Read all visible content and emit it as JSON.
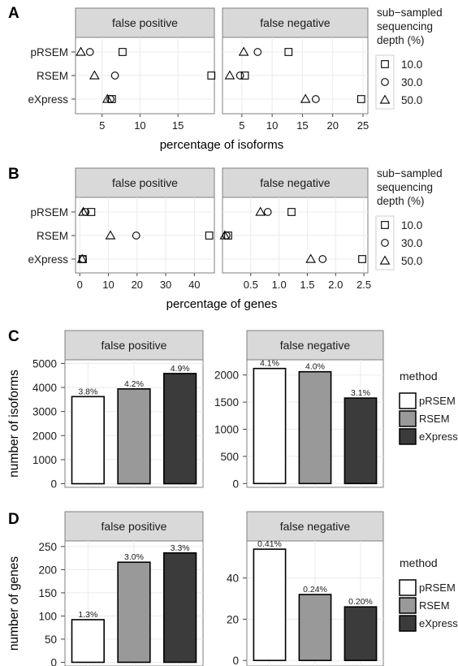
{
  "chart_data": [
    {
      "panel_label": "A",
      "type": "scatter",
      "facets": [
        {
          "title": "false positive",
          "xlim": [
            1.5,
            19.8
          ],
          "ticks": [
            "5",
            "10",
            "15"
          ],
          "tick_values": [
            5,
            10,
            15
          ],
          "series": [
            {
              "name": "10.0",
              "values": [
                7.7,
                19.4,
                6.3
              ]
            },
            {
              "name": "30.0",
              "values": [
                3.4,
                6.7,
                6.1
              ]
            },
            {
              "name": "50.0",
              "values": [
                2.2,
                4.0,
                5.7
              ]
            }
          ]
        },
        {
          "title": "false negative",
          "xlim": [
            1.8,
            25.8
          ],
          "ticks": [
            "5",
            "10",
            "15",
            "20",
            "25"
          ],
          "tick_values": [
            5,
            10,
            15,
            20,
            25
          ],
          "series": [
            {
              "name": "10.0",
              "values": [
                12.7,
                5.5,
                24.7
              ]
            },
            {
              "name": "30.0",
              "values": [
                7.6,
                4.7,
                17.2
              ]
            },
            {
              "name": "50.0",
              "values": [
                5.3,
                3.0,
                15.5
              ]
            }
          ]
        }
      ],
      "categories": [
        "pRSEM",
        "RSEM",
        "eXpress"
      ],
      "xlabel": "percentage of isoforms",
      "legend": {
        "title": [
          "sub−sampled",
          "sequencing",
          "depth (%)"
        ],
        "entries": [
          "10.0",
          "30.0",
          "50.0"
        ]
      }
    },
    {
      "panel_label": "B",
      "type": "scatter",
      "facets": [
        {
          "title": "false positive",
          "xlim": [
            -1.5,
            47
          ],
          "ticks": [
            "0",
            "10",
            "20",
            "30",
            "40"
          ],
          "tick_values": [
            0,
            10,
            20,
            30,
            40
          ],
          "series": [
            {
              "name": "10.0",
              "values": [
                4.0,
                45.2,
                1.0
              ]
            },
            {
              "name": "30.0",
              "values": [
                2.0,
                19.7,
                1.1
              ]
            },
            {
              "name": "50.0",
              "values": [
                1.2,
                10.7,
                0.8
              ]
            }
          ]
        },
        {
          "title": "false negative",
          "xlim": [
            0.0,
            2.57
          ],
          "ticks": [
            "0.5",
            "1.0",
            "1.5",
            "2.0",
            "2.5"
          ],
          "tick_values": [
            0.5,
            1.0,
            1.5,
            2.0,
            2.5
          ],
          "series": [
            {
              "name": "10.0",
              "values": [
                1.22,
                0.1,
                2.47
              ]
            },
            {
              "name": "30.0",
              "values": [
                0.8,
                0.07,
                1.77
              ]
            },
            {
              "name": "50.0",
              "values": [
                0.67,
                0.04,
                1.56
              ]
            }
          ]
        }
      ],
      "categories": [
        "pRSEM",
        "RSEM",
        "eXpress"
      ],
      "xlabel": "percentage of genes",
      "legend": {
        "title": [
          "sub−sampled",
          "sequencing",
          "depth (%)"
        ],
        "entries": [
          "10.0",
          "30.0",
          "50.0"
        ]
      }
    },
    {
      "panel_label": "C",
      "type": "bar",
      "ylabel": "number of isoforms",
      "categories": [
        "pRSEM",
        "RSEM",
        "eXpress"
      ],
      "colors": [
        "#ffffff",
        "#999999",
        "#3b3b3b"
      ],
      "facets": [
        {
          "title": "false positive",
          "ylim": [
            -150,
            5150
          ],
          "ticks": [
            "0",
            "1000",
            "2000",
            "3000",
            "4000",
            "5000"
          ],
          "tick_values": [
            0,
            1000,
            2000,
            3000,
            4000,
            5000
          ],
          "values": [
            3620,
            3940,
            4580
          ],
          "labels": [
            "3.8%",
            "4.2%",
            "4.9%"
          ]
        },
        {
          "title": "false negative",
          "ylim": [
            -70,
            2280
          ],
          "ticks": [
            "0",
            "500",
            "1000",
            "1500",
            "2000"
          ],
          "tick_values": [
            0,
            500,
            1000,
            1500,
            2000
          ],
          "values": [
            2120,
            2060,
            1575
          ],
          "labels": [
            "4.1%",
            "4.0%",
            "3.1%"
          ]
        }
      ],
      "legend": {
        "title": "method",
        "entries": [
          "pRSEM",
          "RSEM",
          "eXpress"
        ]
      }
    },
    {
      "panel_label": "D",
      "type": "bar",
      "ylabel": "number of genes",
      "categories": [
        "pRSEM",
        "RSEM",
        "eXpress"
      ],
      "colors": [
        "#ffffff",
        "#999999",
        "#3b3b3b"
      ],
      "facets": [
        {
          "title": "false positive",
          "ylim": [
            -8,
            262
          ],
          "ticks": [
            "0",
            "50",
            "100",
            "150",
            "200",
            "250"
          ],
          "tick_values": [
            0,
            50,
            100,
            150,
            200,
            250
          ],
          "values": [
            92,
            216,
            236
          ],
          "labels": [
            "1.3%",
            "3.0%",
            "3.3%"
          ]
        },
        {
          "title": "false negative",
          "ylim": [
            -2.7,
            58
          ],
          "ticks": [
            "0",
            "20",
            "40"
          ],
          "tick_values": [
            0,
            20,
            40
          ],
          "values": [
            54,
            32,
            26
          ],
          "labels": [
            "0.41%",
            "0.24%",
            "0.20%"
          ]
        }
      ],
      "legend": {
        "title": "method",
        "entries": [
          "pRSEM",
          "RSEM",
          "eXpress"
        ]
      }
    }
  ]
}
